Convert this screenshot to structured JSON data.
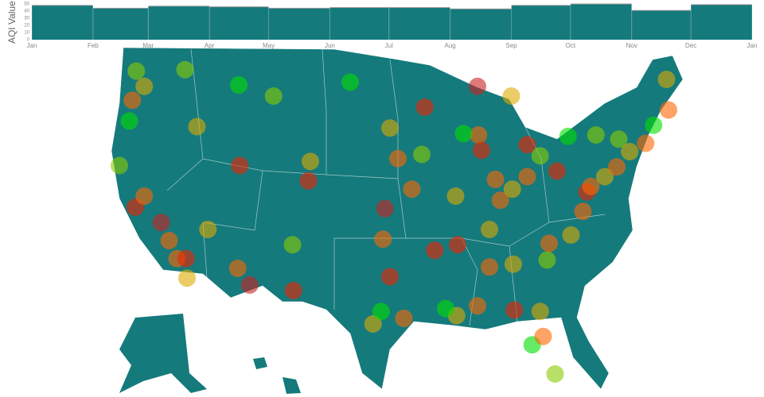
{
  "chart_data": [
    {
      "type": "area",
      "y_label": "AQI Value",
      "xlim": [
        0,
        365
      ],
      "xticks": [
        {
          "value": 0,
          "label": "Jan"
        },
        {
          "value": 31,
          "label": "Feb"
        },
        {
          "value": 59,
          "label": "Mar"
        },
        {
          "value": 90,
          "label": "Apr"
        },
        {
          "value": 120,
          "label": "May"
        },
        {
          "value": 151,
          "label": "Jun"
        },
        {
          "value": 181,
          "label": "Jul"
        },
        {
          "value": 212,
          "label": "Aug"
        },
        {
          "value": 243,
          "label": "Sep"
        },
        {
          "value": 273,
          "label": "Oct"
        },
        {
          "value": 304,
          "label": "Nov"
        },
        {
          "value": 334,
          "label": "Dec"
        },
        {
          "value": 365,
          "label": "Jan"
        }
      ],
      "values": [
        48,
        44,
        47,
        46,
        44,
        45,
        45,
        43,
        48,
        50,
        41,
        49
      ],
      "color": "#157a7c",
      "ylim": [
        0,
        50
      ],
      "yticks": [
        0,
        10,
        20,
        30,
        40,
        50
      ]
    },
    {
      "type": "scatter",
      "map_color": "#157a7c",
      "points": [
        {
          "lon": -122.3,
          "lat": 47.6,
          "color": "#88cc00"
        },
        {
          "lon": -122.7,
          "lat": 45.5,
          "color": "#ff6600"
        },
        {
          "lon": -123.0,
          "lat": 44.0,
          "color": "#00dd00"
        },
        {
          "lon": -121.5,
          "lat": 46.5,
          "color": "#ddaa00"
        },
        {
          "lon": -117.4,
          "lat": 47.7,
          "color": "#88cc00"
        },
        {
          "lon": -116.2,
          "lat": 43.6,
          "color": "#ddaa00"
        },
        {
          "lon": -112.0,
          "lat": 46.6,
          "color": "#00dd00"
        },
        {
          "lon": -108.5,
          "lat": 45.8,
          "color": "#88cc00"
        },
        {
          "lon": -122.4,
          "lat": 37.8,
          "color": "#ee2200"
        },
        {
          "lon": -121.5,
          "lat": 38.6,
          "color": "#ff6600"
        },
        {
          "lon": -119.8,
          "lat": 36.7,
          "color": "#cc2222"
        },
        {
          "lon": -118.2,
          "lat": 34.1,
          "color": "#ff6600"
        },
        {
          "lon": -117.2,
          "lat": 32.7,
          "color": "#ddaa00"
        },
        {
          "lon": -117.3,
          "lat": 34.1,
          "color": "#ee2200"
        },
        {
          "lon": -119.0,
          "lat": 35.4,
          "color": "#ff6600"
        },
        {
          "lon": -124.0,
          "lat": 40.8,
          "color": "#88cc00"
        },
        {
          "lon": -115.1,
          "lat": 36.2,
          "color": "#ddaa00"
        },
        {
          "lon": -112.1,
          "lat": 33.4,
          "color": "#ff6600"
        },
        {
          "lon": -110.9,
          "lat": 32.2,
          "color": "#cc2222"
        },
        {
          "lon": -111.9,
          "lat": 40.8,
          "color": "#ee2200"
        },
        {
          "lon": -106.6,
          "lat": 35.1,
          "color": "#88cc00"
        },
        {
          "lon": -105.0,
          "lat": 39.7,
          "color": "#ee2200"
        },
        {
          "lon": -104.8,
          "lat": 41.1,
          "color": "#ddaa00"
        },
        {
          "lon": -106.5,
          "lat": 31.8,
          "color": "#ee2200"
        },
        {
          "lon": -100.8,
          "lat": 46.8,
          "color": "#00dd00"
        },
        {
          "lon": -96.8,
          "lat": 43.5,
          "color": "#ddaa00"
        },
        {
          "lon": -96.0,
          "lat": 41.3,
          "color": "#ff6600"
        },
        {
          "lon": -97.3,
          "lat": 37.7,
          "color": "#cc2222"
        },
        {
          "lon": -97.5,
          "lat": 35.5,
          "color": "#ff6600"
        },
        {
          "lon": -96.8,
          "lat": 32.8,
          "color": "#ee2200"
        },
        {
          "lon": -95.4,
          "lat": 29.8,
          "color": "#ff6600"
        },
        {
          "lon": -98.5,
          "lat": 29.4,
          "color": "#ddaa00"
        },
        {
          "lon": -97.7,
          "lat": 30.3,
          "color": "#00dd00"
        },
        {
          "lon": -93.3,
          "lat": 45.0,
          "color": "#ee2200"
        },
        {
          "lon": -93.6,
          "lat": 41.6,
          "color": "#88cc00"
        },
        {
          "lon": -94.6,
          "lat": 39.1,
          "color": "#ff6600"
        },
        {
          "lon": -90.2,
          "lat": 38.6,
          "color": "#ddaa00"
        },
        {
          "lon": -92.3,
          "lat": 34.7,
          "color": "#ee2200"
        },
        {
          "lon": -90.1,
          "lat": 30.0,
          "color": "#ddaa00"
        },
        {
          "lon": -91.2,
          "lat": 30.5,
          "color": "#00dd00"
        },
        {
          "lon": -87.9,
          "lat": 43.0,
          "color": "#ff6600"
        },
        {
          "lon": -87.6,
          "lat": 41.9,
          "color": "#ee2200"
        },
        {
          "lon": -89.4,
          "lat": 43.1,
          "color": "#00dd00"
        },
        {
          "lon": -86.2,
          "lat": 39.8,
          "color": "#ff6600"
        },
        {
          "lon": -84.5,
          "lat": 39.1,
          "color": "#ddaa00"
        },
        {
          "lon": -83.0,
          "lat": 40.0,
          "color": "#ff6600"
        },
        {
          "lon": -83.0,
          "lat": 42.3,
          "color": "#ee2200"
        },
        {
          "lon": -81.7,
          "lat": 41.5,
          "color": "#88cc00"
        },
        {
          "lon": -85.7,
          "lat": 38.3,
          "color": "#ff6600"
        },
        {
          "lon": -86.8,
          "lat": 36.2,
          "color": "#ddaa00"
        },
        {
          "lon": -90.0,
          "lat": 35.1,
          "color": "#ee2200"
        },
        {
          "lon": -86.8,
          "lat": 33.5,
          "color": "#ff6600"
        },
        {
          "lon": -84.4,
          "lat": 33.7,
          "color": "#ddaa00"
        },
        {
          "lon": -81.0,
          "lat": 34.0,
          "color": "#88cc00"
        },
        {
          "lon": -80.8,
          "lat": 35.2,
          "color": "#ff6600"
        },
        {
          "lon": -78.6,
          "lat": 35.8,
          "color": "#ddaa00"
        },
        {
          "lon": -77.4,
          "lat": 37.5,
          "color": "#ff6600"
        },
        {
          "lon": -77.0,
          "lat": 38.9,
          "color": "#ee2200"
        },
        {
          "lon": -76.6,
          "lat": 39.3,
          "color": "#ff6600"
        },
        {
          "lon": -75.2,
          "lat": 40.0,
          "color": "#ddaa00"
        },
        {
          "lon": -80.0,
          "lat": 40.4,
          "color": "#ee2200"
        },
        {
          "lon": -74.0,
          "lat": 40.7,
          "color": "#ff6600"
        },
        {
          "lon": -73.8,
          "lat": 42.7,
          "color": "#88cc00"
        },
        {
          "lon": -71.1,
          "lat": 42.4,
          "color": "#ff6600"
        },
        {
          "lon": -72.7,
          "lat": 41.8,
          "color": "#ddaa00"
        },
        {
          "lon": -70.3,
          "lat": 43.7,
          "color": "#00dd00"
        },
        {
          "lon": -68.8,
          "lat": 44.8,
          "color": "#ff6600"
        },
        {
          "lon": -69.0,
          "lat": 47.0,
          "color": "#ddaa00"
        },
        {
          "lon": -76.1,
          "lat": 43.0,
          "color": "#88cc00"
        },
        {
          "lon": -78.9,
          "lat": 42.9,
          "color": "#00dd00"
        },
        {
          "lon": -81.7,
          "lat": 30.3,
          "color": "#ddaa00"
        },
        {
          "lon": -82.5,
          "lat": 27.9,
          "color": "#00dd00"
        },
        {
          "lon": -81.4,
          "lat": 28.5,
          "color": "#ff6600"
        },
        {
          "lon": -80.2,
          "lat": 25.8,
          "color": "#88cc00"
        },
        {
          "lon": -84.3,
          "lat": 30.4,
          "color": "#ee2200"
        },
        {
          "lon": -88.0,
          "lat": 30.7,
          "color": "#ff6600"
        },
        {
          "lon": -84.6,
          "lat": 45.8,
          "color": "#ddaa00"
        },
        {
          "lon": -88.0,
          "lat": 46.5,
          "color": "#cc2222"
        }
      ]
    }
  ]
}
